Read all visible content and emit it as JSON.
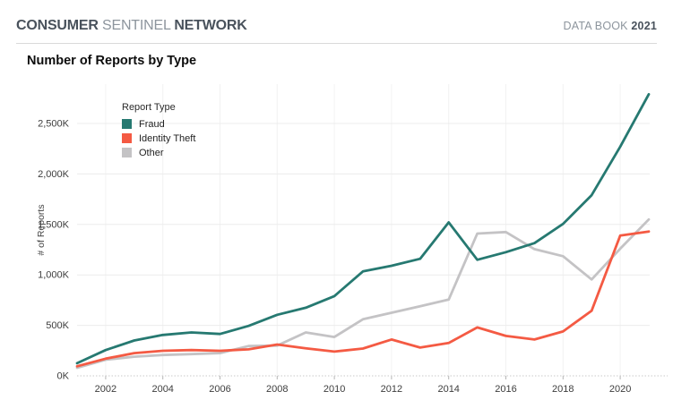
{
  "header": {
    "brand": {
      "word1": "CONSUMER",
      "word2": "SENTINEL",
      "word3": "NETWORK"
    },
    "edition": {
      "label": "DATA BOOK",
      "year": "2021"
    }
  },
  "chart_title": "Number of Reports by Type",
  "chart_data": {
    "type": "line",
    "title": "Number of Reports by Type",
    "xlabel": "",
    "ylabel": "# of Reports",
    "legend_title": "Report Type",
    "legend_position": "top-left inside plot",
    "grid": true,
    "units": "reports; values stored in thousands (K)",
    "x": [
      2001,
      2002,
      2003,
      2004,
      2005,
      2006,
      2007,
      2008,
      2009,
      2010,
      2011,
      2012,
      2013,
      2014,
      2015,
      2016,
      2017,
      2018,
      2019,
      2020,
      2021
    ],
    "x_tick_labels": [
      "2002",
      "2004",
      "2006",
      "2008",
      "2010",
      "2012",
      "2014",
      "2016",
      "2018",
      "2020"
    ],
    "y_ticks": [
      0,
      500,
      1000,
      1500,
      2000,
      2500
    ],
    "y_tick_labels": [
      "0K",
      "500K",
      "1,000K",
      "1,500K",
      "2,000K",
      "2,500K"
    ],
    "ylim": [
      0,
      2900
    ],
    "series": [
      {
        "name": "Fraud",
        "color": "#267971",
        "values": [
          125,
          255,
          350,
          405,
          430,
          415,
          495,
          605,
          675,
          790,
          1035,
          1090,
          1160,
          1520,
          1150,
          1225,
          1315,
          1505,
          1790,
          2270,
          2790
        ]
      },
      {
        "name": "Identity Theft",
        "color": "#f45a43",
        "values": [
          95,
          170,
          225,
          248,
          255,
          248,
          262,
          310,
          272,
          240,
          270,
          360,
          280,
          325,
          480,
          395,
          360,
          440,
          645,
          1390,
          1430
        ]
      },
      {
        "name": "Other",
        "color": "#c4c3c5",
        "values": [
          80,
          160,
          190,
          207,
          215,
          225,
          295,
          300,
          430,
          385,
          560,
          625,
          690,
          755,
          1410,
          1425,
          1255,
          1185,
          955,
          1260,
          1550
        ]
      }
    ]
  },
  "colors": {
    "brand_dark": "#49525c",
    "brand_muted": "#8d959d",
    "divider": "#d9d9d9",
    "grid_line": "#ececec",
    "axis_text": "#3d3d3d"
  }
}
